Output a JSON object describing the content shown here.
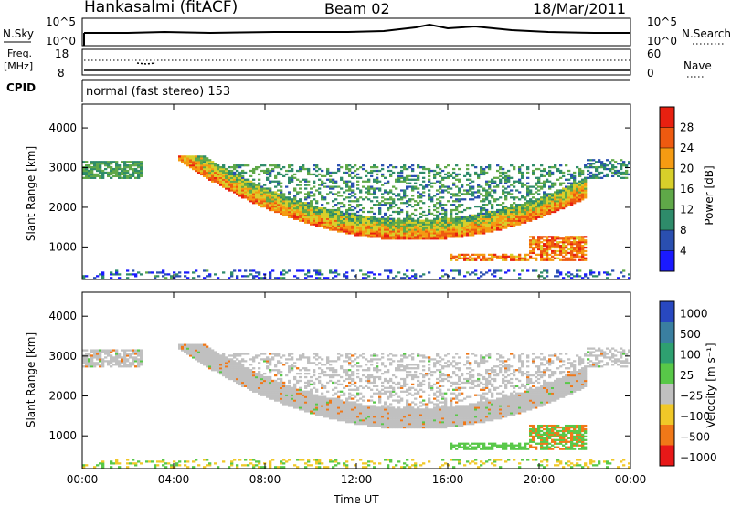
{
  "header": {
    "station": "Hankasalmi (fitACF)",
    "beam": "Beam 02",
    "date": "18/Mar/2011"
  },
  "status_panels": {
    "nsky_label": "N.Sky",
    "nsky_ticks": [
      "10^5",
      "10^0"
    ],
    "nsearch_label": "N.Search",
    "nsearch_ticks": [
      "10^5",
      "10^0"
    ],
    "freq_label": "Freq.",
    "freq_unit": "[MHz]",
    "freq_ticks": [
      "18",
      "8"
    ],
    "nave_label": "Nave",
    "nave_ticks": [
      "60",
      "0"
    ],
    "cpid_label": "CPID",
    "cpid_text": "normal (fast stereo) 153"
  },
  "chart_data": [
    {
      "type": "heatmap",
      "panel": "power",
      "ylabel": "Slant Range [km]",
      "yticks": [
        "1000",
        "2000",
        "3000",
        "4000"
      ],
      "ylim": [
        180,
        4600
      ],
      "xlim": [
        0,
        24
      ],
      "colorbar_label": "Power [dB]",
      "colorbar_ticks": [
        "4",
        "8",
        "12",
        "16",
        "20",
        "24",
        "28"
      ],
      "colorscale": [
        "#1a1aff",
        "#2a4fb0",
        "#2e8b6a",
        "#5fa848",
        "#d8cf2a",
        "#f59b12",
        "#ee5a10",
        "#e82010"
      ],
      "echo_bands": [
        {
          "t_start": 0.0,
          "t_end": 2.6,
          "range_low": 2650,
          "range_high": 3200,
          "level": 0.35
        },
        {
          "t_start": 4.0,
          "t_end": 22.0,
          "range_low": 1050,
          "range_high": 1700,
          "level": 0.9
        },
        {
          "t_start": 19.5,
          "t_end": 22.0,
          "range_low": 700,
          "range_high": 1300,
          "level": 0.85
        },
        {
          "t_start": 16.0,
          "t_end": 22.0,
          "range_low": 600,
          "range_high": 850,
          "level": 0.9
        },
        {
          "t_start": 4.5,
          "t_end": 24.0,
          "range_low": 2550,
          "range_high": 3200,
          "level": 0.3
        }
      ]
    },
    {
      "type": "heatmap",
      "panel": "velocity",
      "ylabel": "Slant Range [km]",
      "yticks": [
        "1000",
        "2000",
        "3000",
        "4000"
      ],
      "ylim": [
        180,
        4600
      ],
      "xlim": [
        0,
        24
      ],
      "colorbar_label": "Velocity [m s⁻¹]",
      "colorbar_ticks": [
        "1000",
        "500",
        "100",
        "25",
        "−25",
        "−100",
        "−500",
        "−1000"
      ],
      "colorscale": [
        "#2848c0",
        "#3a7fa0",
        "#2ea070",
        "#58c848",
        "#c0c0c0",
        "#f0c828",
        "#f07818",
        "#e81818"
      ],
      "xlabel": "Time UT",
      "xticks": [
        "00:00",
        "04:00",
        "08:00",
        "12:00",
        "16:00",
        "20:00",
        "00:00"
      ]
    }
  ]
}
